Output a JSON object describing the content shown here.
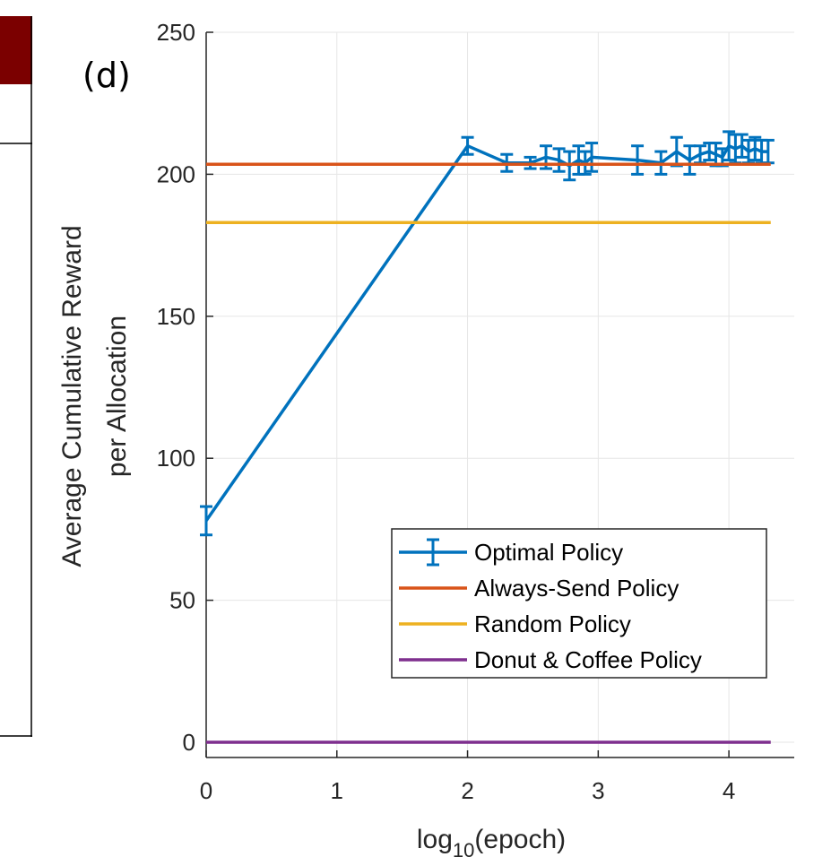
{
  "panel_tag": "(d)",
  "chart_data": {
    "type": "line",
    "title": "",
    "xlabel_base": "log",
    "xlabel_sub": "10",
    "xlabel_rest": "(epoch)",
    "ylabel_lines": [
      "Average Cumulative Reward",
      "per Allocation"
    ],
    "xlim": [
      0,
      4.5
    ],
    "ylim": [
      0,
      250
    ],
    "xticks": [
      0,
      1,
      2,
      3,
      4
    ],
    "yticks": [
      0,
      50,
      100,
      150,
      200,
      250
    ],
    "grid": true,
    "legend_position": "bottom-right",
    "series": [
      {
        "name": "Optimal Policy",
        "color": "#0072BD",
        "style": "errorbar-line",
        "x": [
          0,
          2.0,
          2.3,
          2.48,
          2.6,
          2.7,
          2.78,
          2.85,
          2.9,
          2.95,
          3.3,
          3.48,
          3.6,
          3.7,
          3.78,
          3.85,
          3.9,
          3.95,
          4.0,
          4.05,
          4.1,
          4.15,
          4.2,
          4.25,
          4.3
        ],
        "y": [
          78,
          210,
          204,
          204,
          206,
          205,
          203,
          205,
          204,
          206,
          205,
          204,
          208,
          205,
          207,
          208,
          207,
          206,
          210,
          209,
          210,
          208,
          209,
          208,
          208
        ],
        "err": [
          5,
          3,
          3,
          2,
          4,
          4,
          5,
          5,
          4,
          5,
          5,
          4,
          5,
          5,
          3,
          3,
          4,
          3,
          5,
          5,
          4,
          4,
          4,
          4,
          4
        ]
      },
      {
        "name": "Always-Send Policy",
        "color": "#D95319",
        "style": "hline",
        "y": 203.5,
        "xrange": [
          0,
          4.32
        ]
      },
      {
        "name": "Random Policy",
        "color": "#EDB120",
        "style": "hline",
        "y": 183,
        "xrange": [
          0,
          4.32
        ]
      },
      {
        "name": "Donut & Coffee Policy",
        "color": "#7E2F8E",
        "style": "hline",
        "y": 0,
        "xrange": [
          0,
          4.32
        ]
      }
    ]
  },
  "colors": {
    "fragment_header": "#7b0000",
    "axis": "#262626",
    "grid": "#e6e6e6"
  }
}
